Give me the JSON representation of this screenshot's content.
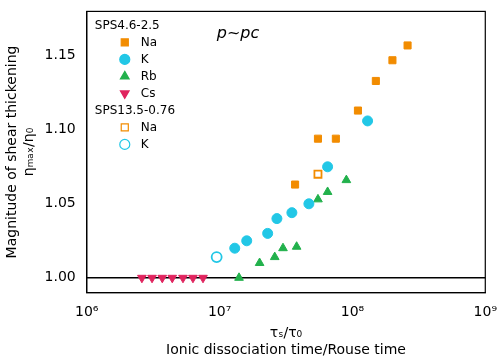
{
  "chart_data": {
    "type": "scatter",
    "x_label": [
      "τₛ/τ₀",
      "Ionic dissociation time/Rouse time"
    ],
    "y_label": [
      "Magnitude of shear thickening",
      "ηₘₐₓ/η₀"
    ],
    "annotation": "p~pc",
    "log": "x",
    "grid": false,
    "legend": "upper left",
    "xlim": [
      1000000,
      1000000000
    ],
    "xticks": [
      {
        "value": 1000000,
        "label": "10⁶"
      },
      {
        "value": 10000000,
        "label": "10⁷"
      },
      {
        "value": 100000000,
        "label": "10⁸"
      },
      {
        "value": 1000000000,
        "label": "10⁹"
      }
    ],
    "ylim": [
      0.99,
      1.18
    ],
    "yticks": [
      {
        "value": 1,
        "label": "1.00"
      },
      1.05,
      {
        "value": 1.1,
        "label": "1.10"
      },
      1.15
    ],
    "reference_line": 1,
    "series": [
      {
        "group": "SPS4.6-2.5",
        "name": "Na",
        "color": "#f28c00",
        "marker": "square",
        "x": [
          37000000,
          55000000,
          75000000,
          110000000,
          150000000,
          200000000,
          260000000
        ],
        "values": [
          1.063,
          1.094,
          1.094,
          1.113,
          1.133,
          1.147,
          1.157
        ]
      },
      {
        "group": "SPS4.6-2.5",
        "name": "K",
        "color": "#22c7e6",
        "marker": "circle",
        "x": [
          13000000,
          16000000,
          23000000,
          27000000,
          35000000,
          47000000,
          65000000,
          130000000
        ],
        "values": [
          1.02,
          1.025,
          1.03,
          1.04,
          1.044,
          1.05,
          1.075,
          1.106
        ]
      },
      {
        "group": "SPS4.6-2.5",
        "name": "Rb",
        "color": "#22b14c",
        "marker": "triangle",
        "x": [
          14000000,
          20000000,
          26000000,
          30000000,
          38000000,
          55000000,
          65000000,
          90000000
        ],
        "values": [
          1.0,
          1.01,
          1.014,
          1.02,
          1.021,
          1.053,
          1.058,
          1.066
        ]
      },
      {
        "group": "SPS4.6-2.5",
        "name": "Cs",
        "color": "#e0245e",
        "marker": "triangle-down",
        "x": [
          2600000,
          3100000,
          3700000,
          4400000,
          5300000,
          6300000,
          7500000
        ],
        "values": [
          1.0,
          1.0,
          1.0,
          1.0,
          1.0,
          1.0,
          1.0
        ]
      },
      {
        "group": "SPS13.5-0.76",
        "name": "Na",
        "color": "#f28c00",
        "marker": "open-square",
        "x": [
          55000000
        ],
        "values": [
          1.07
        ]
      },
      {
        "group": "SPS13.5-0.76",
        "name": "K",
        "color": "#22c7e6",
        "marker": "open-circle",
        "x": [
          9500000
        ],
        "values": [
          1.014
        ]
      }
    ]
  }
}
